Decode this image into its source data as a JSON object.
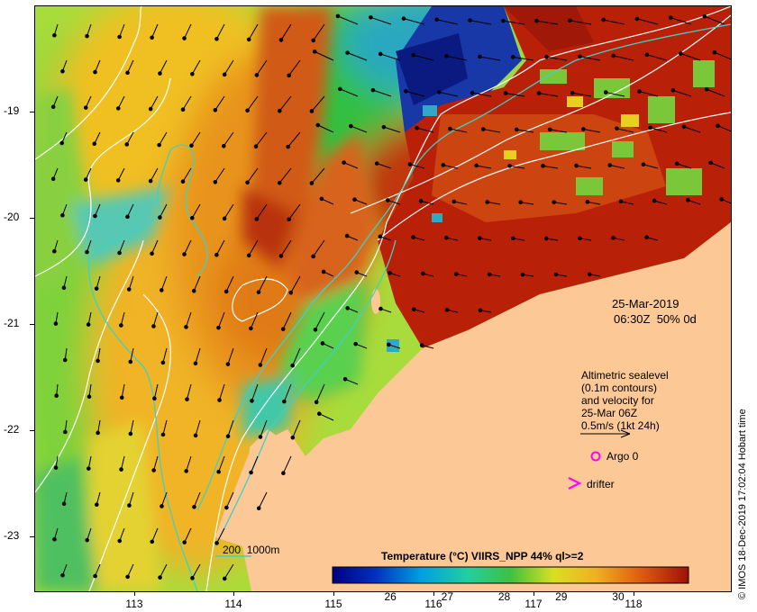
{
  "map": {
    "date": "25-Mar-2019",
    "time_line": "06:30Z  50% 0d",
    "legend_text": "Altimetric sealevel\n(0.1m contours)\nand velocity for\n25-Mar 06Z\n0.5m/s (1kt 24h)",
    "argo_label": "Argo 0",
    "drifter_label": "drifter",
    "isobath_label": "200  1000m",
    "credit": "© IMOS 18-Dec-2019 17:02:04 Hobart time",
    "colorbar_title": "Temperature (°C) VIIRS_NPP 44% ql>=2",
    "colorbar_ticks": [
      "26",
      "27",
      "28",
      "29",
      "30"
    ],
    "y_ticks": [
      "-19",
      "-20",
      "-21",
      "-22",
      "-23"
    ],
    "x_ticks": [
      "113",
      "114",
      "115",
      "116",
      "117",
      "118"
    ],
    "colors": {
      "land": "#fbc896",
      "isobath": "#3fd0c8",
      "argo": "#ff00ff",
      "contour": "#ffffff",
      "arrow": "#000000"
    },
    "icons": [
      "arrow-icon",
      "argo-circle-icon",
      "drifter-chevron-icon"
    ]
  }
}
